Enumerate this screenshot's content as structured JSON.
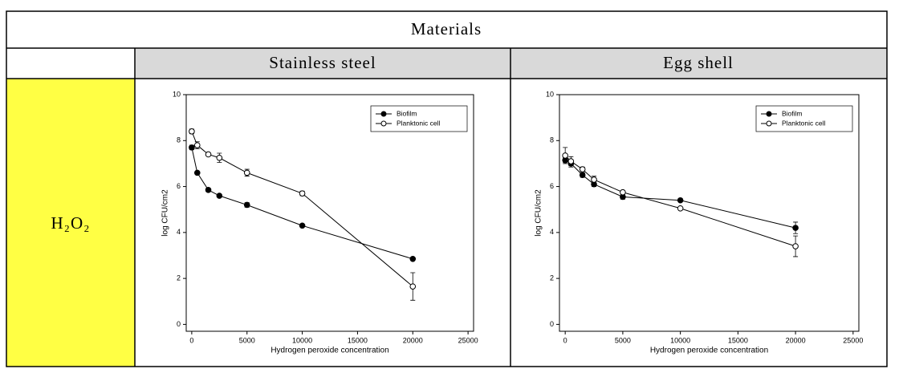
{
  "table": {
    "header": "Materials",
    "columns": [
      "Stainless steel",
      "Egg shell"
    ],
    "rows": [
      {
        "label": "H₂O₂"
      }
    ]
  },
  "chart_data": [
    {
      "type": "line",
      "xlabel": "Hydrogen peroxide concentration",
      "ylabel": "log CFU/cm2",
      "x": [
        0,
        500,
        1500,
        2500,
        5000,
        10000,
        20000
      ],
      "series": [
        {
          "name": "Biofilm",
          "color": "#000000",
          "values": [
            7.7,
            6.6,
            5.85,
            5.6,
            5.2,
            4.3,
            2.85
          ],
          "errors": [
            0.1,
            0.05,
            0.08,
            0.05,
            0.1,
            0.05,
            0.05
          ]
        },
        {
          "name": "Planktonic cell",
          "color": "#ffffff",
          "values": [
            8.4,
            7.8,
            7.4,
            7.25,
            6.6,
            5.7,
            1.65
          ],
          "errors": [
            0.1,
            0.15,
            0.05,
            0.2,
            0.15,
            0.1,
            0.6
          ]
        }
      ],
      "xlim": [
        -500,
        25500
      ],
      "xticks": [
        0,
        5000,
        10000,
        15000,
        20000,
        25000
      ],
      "ylim": [
        -0.3,
        10
      ],
      "yticks": [
        0,
        2,
        4,
        6,
        8,
        10
      ],
      "legend": "upper right"
    },
    {
      "type": "line",
      "xlabel": "Hydrogen peroxide concentration",
      "ylabel": "log CFU/cm2",
      "x": [
        0,
        500,
        1500,
        2500,
        5000,
        10000,
        20000
      ],
      "series": [
        {
          "name": "Biofilm",
          "color": "#000000",
          "values": [
            7.15,
            7.0,
            6.5,
            6.1,
            5.55,
            5.4,
            4.2
          ],
          "errors": [
            0.1,
            0.15,
            0.1,
            0.1,
            0.1,
            0.05,
            0.25
          ]
        },
        {
          "name": "Planktonic cell",
          "color": "#ffffff",
          "values": [
            7.35,
            7.1,
            6.75,
            6.3,
            5.75,
            5.05,
            3.4
          ],
          "errors": [
            0.35,
            0.2,
            0.1,
            0.15,
            0.05,
            0.05,
            0.45
          ]
        }
      ],
      "xlim": [
        -500,
        25500
      ],
      "xticks": [
        0,
        5000,
        10000,
        15000,
        20000,
        25000
      ],
      "ylim": [
        -0.3,
        10
      ],
      "yticks": [
        0,
        2,
        4,
        6,
        8,
        10
      ],
      "legend": "upper right"
    }
  ]
}
